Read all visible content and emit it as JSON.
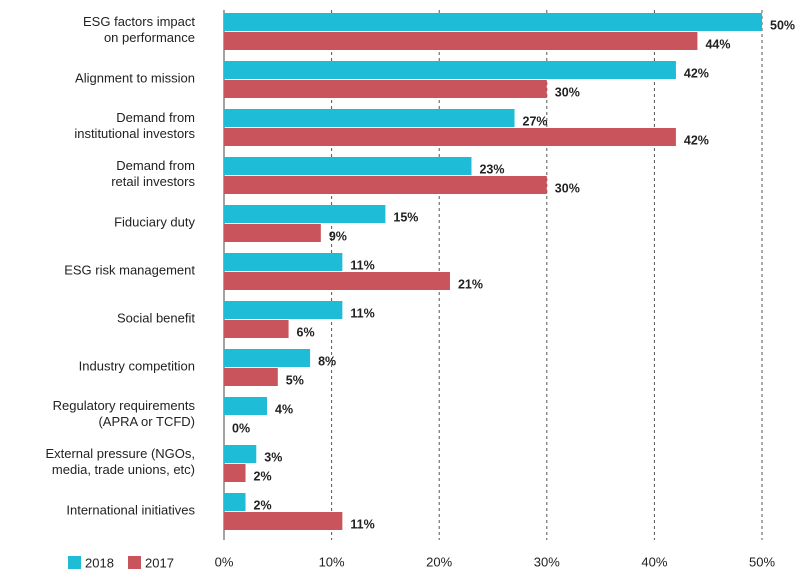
{
  "chart_data": {
    "type": "bar",
    "orientation": "horizontal",
    "categories": [
      "ESG factors impact\non performance",
      "Alignment to mission",
      "Demand from\ninstitutional investors",
      "Demand from\nretail investors",
      "Fiduciary duty",
      "ESG risk management",
      "Social benefit",
      "Industry competition",
      "Regulatory requirements\n(APRA or TCFD)",
      "External pressure (NGOs,\nmedia, trade unions, etc)",
      "International initiatives"
    ],
    "series": [
      {
        "name": "2018",
        "color": "#1ebcd6",
        "values": [
          50,
          42,
          27,
          23,
          15,
          11,
          11,
          8,
          4,
          3,
          2
        ],
        "value_labels": [
          "50%",
          "42%",
          "27%",
          "23%",
          "15%",
          "11%",
          "11%",
          "8%",
          "4%",
          "3%",
          "2%"
        ]
      },
      {
        "name": "2017",
        "color": "#c9545c",
        "values": [
          44,
          30,
          42,
          30,
          9,
          21,
          6,
          5,
          0,
          2,
          11
        ],
        "value_labels": [
          "44%",
          "30%",
          "42%",
          "30%",
          "9%",
          "21%",
          "6%",
          "5%",
          "0%",
          "2%",
          "11%"
        ]
      }
    ],
    "xlim": [
      0,
      50
    ],
    "xticks": [
      {
        "value": 0,
        "label": "0%"
      },
      {
        "value": 10,
        "label": "10%"
      },
      {
        "value": 20,
        "label": "20%"
      },
      {
        "value": 30,
        "label": "30%"
      },
      {
        "value": 40,
        "label": "40%"
      },
      {
        "value": 50,
        "label": "50%"
      }
    ],
    "grid": true,
    "legend": "bottom-left"
  }
}
